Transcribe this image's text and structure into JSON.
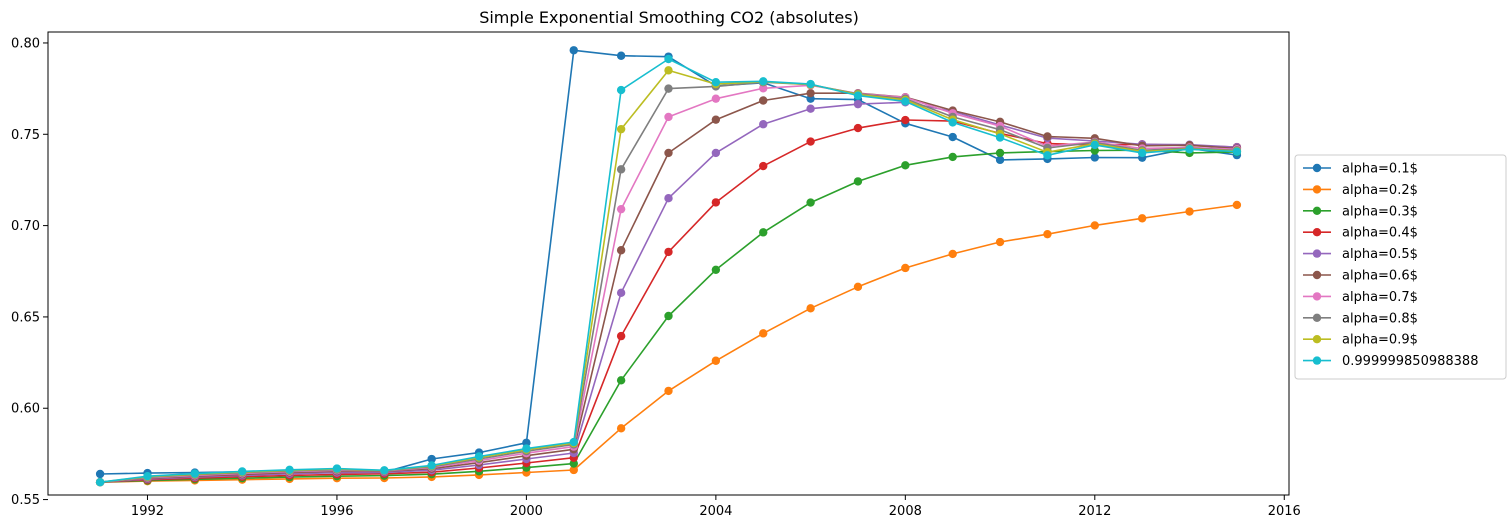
{
  "chart_data": {
    "type": "line",
    "title": "Simple Exponential Smoothing CO2 (absolutes)",
    "xlabel": "",
    "ylabel": "",
    "xlim": [
      1989.9,
      2016.1
    ],
    "ylim": [
      0.5525,
      0.806
    ],
    "xticks": [
      1992,
      1996,
      2000,
      2004,
      2008,
      2012,
      2016
    ],
    "yticks": [
      0.55,
      0.6,
      0.65,
      0.7,
      0.75,
      0.8
    ],
    "ytick_labels": [
      "0.55",
      "0.60",
      "0.65",
      "0.70",
      "0.75",
      "0.80"
    ],
    "grid": false,
    "legend_position": "center-right outside",
    "x": [
      1991,
      1992,
      1993,
      1994,
      1995,
      1996,
      1997,
      1998,
      1999,
      2000,
      2001,
      2002,
      2003,
      2004,
      2005,
      2006,
      2007,
      2008,
      2009,
      2010,
      2011,
      2012,
      2013,
      2014,
      2015
    ],
    "series": [
      {
        "name": "alpha=0.1$",
        "color": "#1f77b4",
        "values": [
          0.564,
          0.5645,
          0.5648,
          0.5652,
          0.5655,
          0.5658,
          0.565,
          0.5722,
          0.5757,
          0.5811,
          0.796,
          0.793,
          0.7925,
          0.7765,
          0.7782,
          0.7695,
          0.769,
          0.756,
          0.7485,
          0.736,
          0.7365,
          0.7373,
          0.7372,
          0.7423,
          0.7386
        ]
      },
      {
        "name": "alpha=0.2$",
        "color": "#ff7f0e",
        "values": [
          0.5595,
          0.5601,
          0.5605,
          0.5609,
          0.5613,
          0.5617,
          0.5618,
          0.5624,
          0.5635,
          0.5648,
          0.5662,
          0.589,
          0.6095,
          0.626,
          0.641,
          0.6547,
          0.6665,
          0.6768,
          0.6845,
          0.691,
          0.6953,
          0.7001,
          0.704,
          0.7077,
          0.7113
        ]
      },
      {
        "name": "alpha=0.3$",
        "color": "#2ca02c",
        "values": [
          0.5595,
          0.5604,
          0.5611,
          0.5617,
          0.5623,
          0.5628,
          0.5631,
          0.5639,
          0.5655,
          0.5675,
          0.5697,
          0.6153,
          0.6505,
          0.6758,
          0.6963,
          0.7126,
          0.7242,
          0.733,
          0.7376,
          0.7398,
          0.7405,
          0.7411,
          0.7413,
          0.7398,
          0.7403
        ]
      },
      {
        "name": "alpha=0.4$",
        "color": "#d62728",
        "values": [
          0.5595,
          0.5608,
          0.5617,
          0.5625,
          0.5632,
          0.5638,
          0.5641,
          0.565,
          0.5673,
          0.57,
          0.5729,
          0.6395,
          0.6856,
          0.7127,
          0.7326,
          0.746,
          0.7534,
          0.7578,
          0.7572,
          0.7505,
          0.7449,
          0.7442,
          0.7445,
          0.7438,
          0.743
        ]
      },
      {
        "name": "alpha=0.5$",
        "color": "#9467bd",
        "values": [
          0.5595,
          0.5612,
          0.5623,
          0.5632,
          0.5641,
          0.5647,
          0.5649,
          0.5661,
          0.5689,
          0.5722,
          0.5755,
          0.6632,
          0.715,
          0.7398,
          0.7555,
          0.764,
          0.7665,
          0.7675,
          0.7625,
          0.7551,
          0.7479,
          0.7463,
          0.7445,
          0.7443,
          0.7429
        ]
      },
      {
        "name": "alpha=0.6$",
        "color": "#8c564b",
        "values": [
          0.5595,
          0.5616,
          0.5628,
          0.5638,
          0.5648,
          0.5655,
          0.5655,
          0.5669,
          0.5702,
          0.574,
          0.5775,
          0.6865,
          0.7398,
          0.758,
          0.7685,
          0.7725,
          0.7725,
          0.7703,
          0.763,
          0.7568,
          0.7488,
          0.7478,
          0.7437,
          0.744,
          0.7422
        ]
      },
      {
        "name": "alpha=0.7$",
        "color": "#e377c2",
        "values": [
          0.5595,
          0.5619,
          0.5632,
          0.5643,
          0.5653,
          0.566,
          0.5657,
          0.5676,
          0.5713,
          0.5754,
          0.579,
          0.709,
          0.7595,
          0.7695,
          0.7752,
          0.7768,
          0.7723,
          0.7702,
          0.7615,
          0.7545,
          0.7435,
          0.7458,
          0.7422,
          0.7428,
          0.7418
        ]
      },
      {
        "name": "alpha=0.8$",
        "color": "#7f7f7f",
        "values": [
          0.5595,
          0.5622,
          0.5636,
          0.5647,
          0.5657,
          0.5664,
          0.5658,
          0.568,
          0.5722,
          0.5765,
          0.5802,
          0.7308,
          0.775,
          0.7762,
          0.7785,
          0.7772,
          0.7721,
          0.7695,
          0.7595,
          0.7525,
          0.7425,
          0.7455,
          0.7412,
          0.7424,
          0.7412
        ]
      },
      {
        "name": "alpha=0.9$",
        "color": "#bcbd22",
        "values": [
          0.5595,
          0.5625,
          0.5639,
          0.5651,
          0.566,
          0.5668,
          0.5659,
          0.5684,
          0.573,
          0.5773,
          0.5809,
          0.7528,
          0.785,
          0.7775,
          0.7788,
          0.7772,
          0.7718,
          0.7688,
          0.758,
          0.7502,
          0.7402,
          0.7448,
          0.7405,
          0.742,
          0.7408
        ]
      },
      {
        "name": "0.999999850988388",
        "color": "#17becf",
        "values": [
          0.5595,
          0.5628,
          0.5642,
          0.5654,
          0.5663,
          0.567,
          0.566,
          0.5687,
          0.5736,
          0.5779,
          0.5815,
          0.7742,
          0.7912,
          0.7785,
          0.779,
          0.7775,
          0.7712,
          0.768,
          0.7565,
          0.7482,
          0.7385,
          0.7442,
          0.7398,
          0.7418,
          0.7405
        ]
      }
    ]
  }
}
